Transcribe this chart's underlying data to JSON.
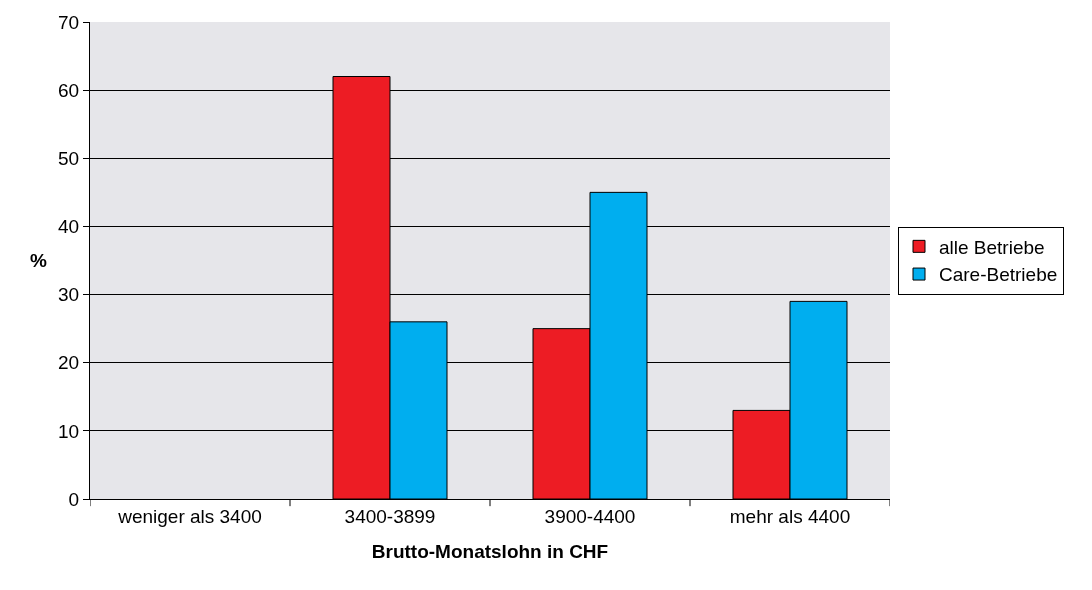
{
  "chart_data": {
    "type": "bar",
    "xlabel": "Brutto-Monatslohn in CHF",
    "ylabel": "%",
    "categories": [
      "weniger als 3400",
      "3400-3899",
      "3900-4400",
      "mehr als 4400"
    ],
    "series": [
      {
        "name": "alle Betriebe",
        "color": "#ed1c24",
        "values": [
          null,
          62,
          25,
          13
        ]
      },
      {
        "name": "Care-Betriebe",
        "color": "#00aeef",
        "values": [
          null,
          26,
          45,
          29
        ]
      }
    ],
    "ylim": [
      0,
      70
    ],
    "yticks": [
      0,
      10,
      20,
      30,
      40,
      50,
      60,
      70
    ],
    "grid": "y",
    "legend": "right"
  }
}
